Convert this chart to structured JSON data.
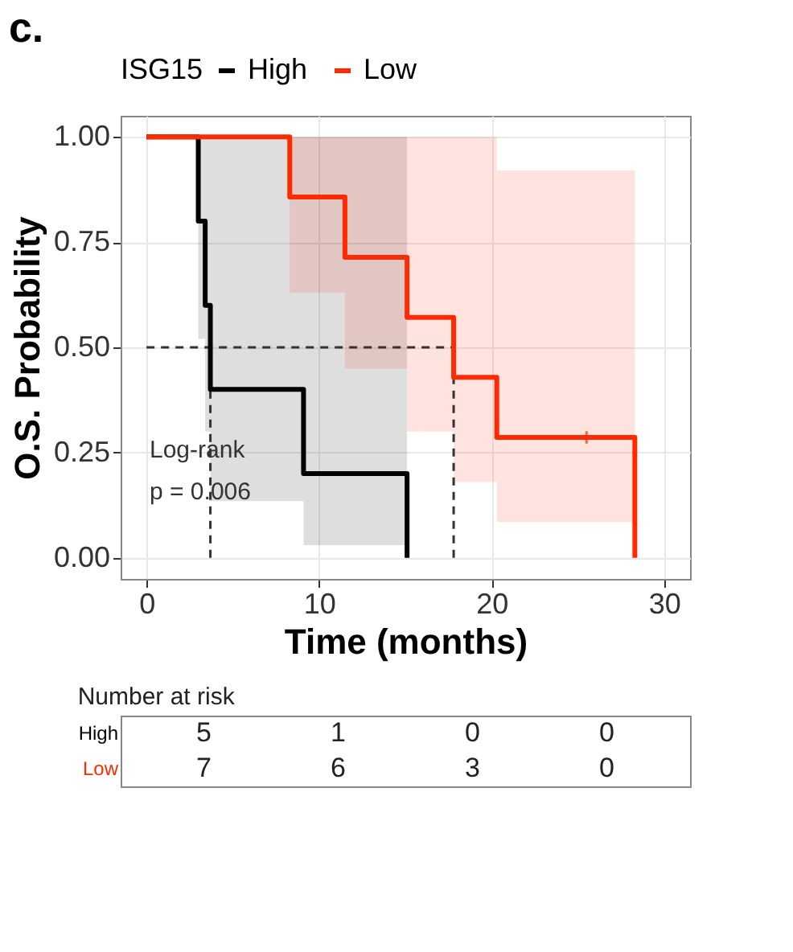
{
  "chart_data": [
    {
      "type": "step",
      "title": "c.",
      "xlabel": "Time (months)",
      "ylabel": "O.S. Probability",
      "legend_title": "ISG15",
      "legend": "top",
      "series": [
        {
          "name": "High",
          "color": "#000000",
          "x": [
            0,
            3.0,
            3.4,
            3.7,
            9.1,
            15.1
          ],
          "values": [
            1,
            0.8,
            0.6,
            0.4,
            0.2,
            0
          ],
          "lower": [
            null,
            0.52,
            0.3,
            0.135,
            0.03,
            0.03
          ],
          "upper": [
            null,
            1,
            1,
            1,
            1,
            1
          ]
        },
        {
          "name": "Low",
          "color": "#ff2a00",
          "x": [
            0,
            8.3,
            11.5,
            15.1,
            17.8,
            20.3,
            28.3
          ],
          "values": [
            1,
            0.857,
            0.714,
            0.571,
            0.429,
            0.286,
            0
          ],
          "lower": [
            null,
            0.63,
            0.45,
            0.3,
            0.18,
            0.085,
            0.085
          ],
          "upper": [
            null,
            1,
            1,
            1,
            1,
            0.92,
            0.92
          ]
        },
        {
          "type": "scatter",
          "marker": "cross",
          "color": "#ff2a00",
          "x": [
            25.5
          ],
          "values": [
            0.286
          ]
        }
      ],
      "ref_lines": [
        {
          "axis": "y",
          "value": 0.5,
          "line_style": "dashed"
        },
        {
          "axis": "x",
          "value": 3.7,
          "line_style": "dashed"
        },
        {
          "axis": "x",
          "value": 17.8,
          "line_style": "dashed"
        }
      ],
      "annotations": [
        "Log-rank",
        "p = 0.006"
      ],
      "xlim": [
        -1.5,
        31.5
      ],
      "xticks": [
        0,
        10,
        20,
        30
      ],
      "ylim": [
        -0.05,
        1.05
      ],
      "yticks": [
        {
          "value": 0,
          "label": "0.00"
        },
        {
          "value": 0.25,
          "label": "0.25"
        },
        {
          "value": 0.5,
          "label": "0.50"
        },
        {
          "value": 0.75,
          "label": "0.75"
        },
        {
          "value": 1,
          "label": "1.00"
        }
      ],
      "grid": true
    },
    {
      "type": "other",
      "title": "Number at risk",
      "categories": [
        null,
        null,
        null,
        null
      ],
      "y_categories": [
        "High",
        "Low"
      ],
      "cell_labels": [
        [
          "5",
          "1",
          "0",
          "0"
        ],
        [
          "7",
          "6",
          "3",
          "0"
        ]
      ]
    }
  ]
}
